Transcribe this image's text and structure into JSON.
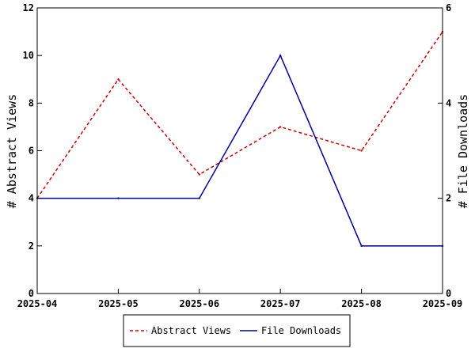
{
  "chart_data": {
    "type": "line",
    "categories": [
      "2025-04",
      "2025-05",
      "2025-06",
      "2025-07",
      "2025-08",
      "2025-09"
    ],
    "series": [
      {
        "name": "Abstract Views",
        "axis": "left",
        "values": [
          4,
          9,
          5,
          7,
          6,
          11
        ],
        "color": "#cc0000",
        "style": "dashed"
      },
      {
        "name": "File Downloads",
        "axis": "right",
        "values": [
          2,
          2,
          2,
          5,
          1,
          1
        ],
        "color": "#000099",
        "style": "solid"
      }
    ],
    "ylabel_left": "# Abstract Views",
    "ylabel_right": "# File Downloads",
    "ylim_left": [
      0,
      12
    ],
    "ylim_right": [
      0,
      6
    ],
    "yticks_left": [
      0,
      2,
      4,
      6,
      8,
      10,
      12
    ],
    "yticks_right": [
      0,
      2,
      4,
      6
    ],
    "grid": false,
    "legend_position": "bottom"
  }
}
